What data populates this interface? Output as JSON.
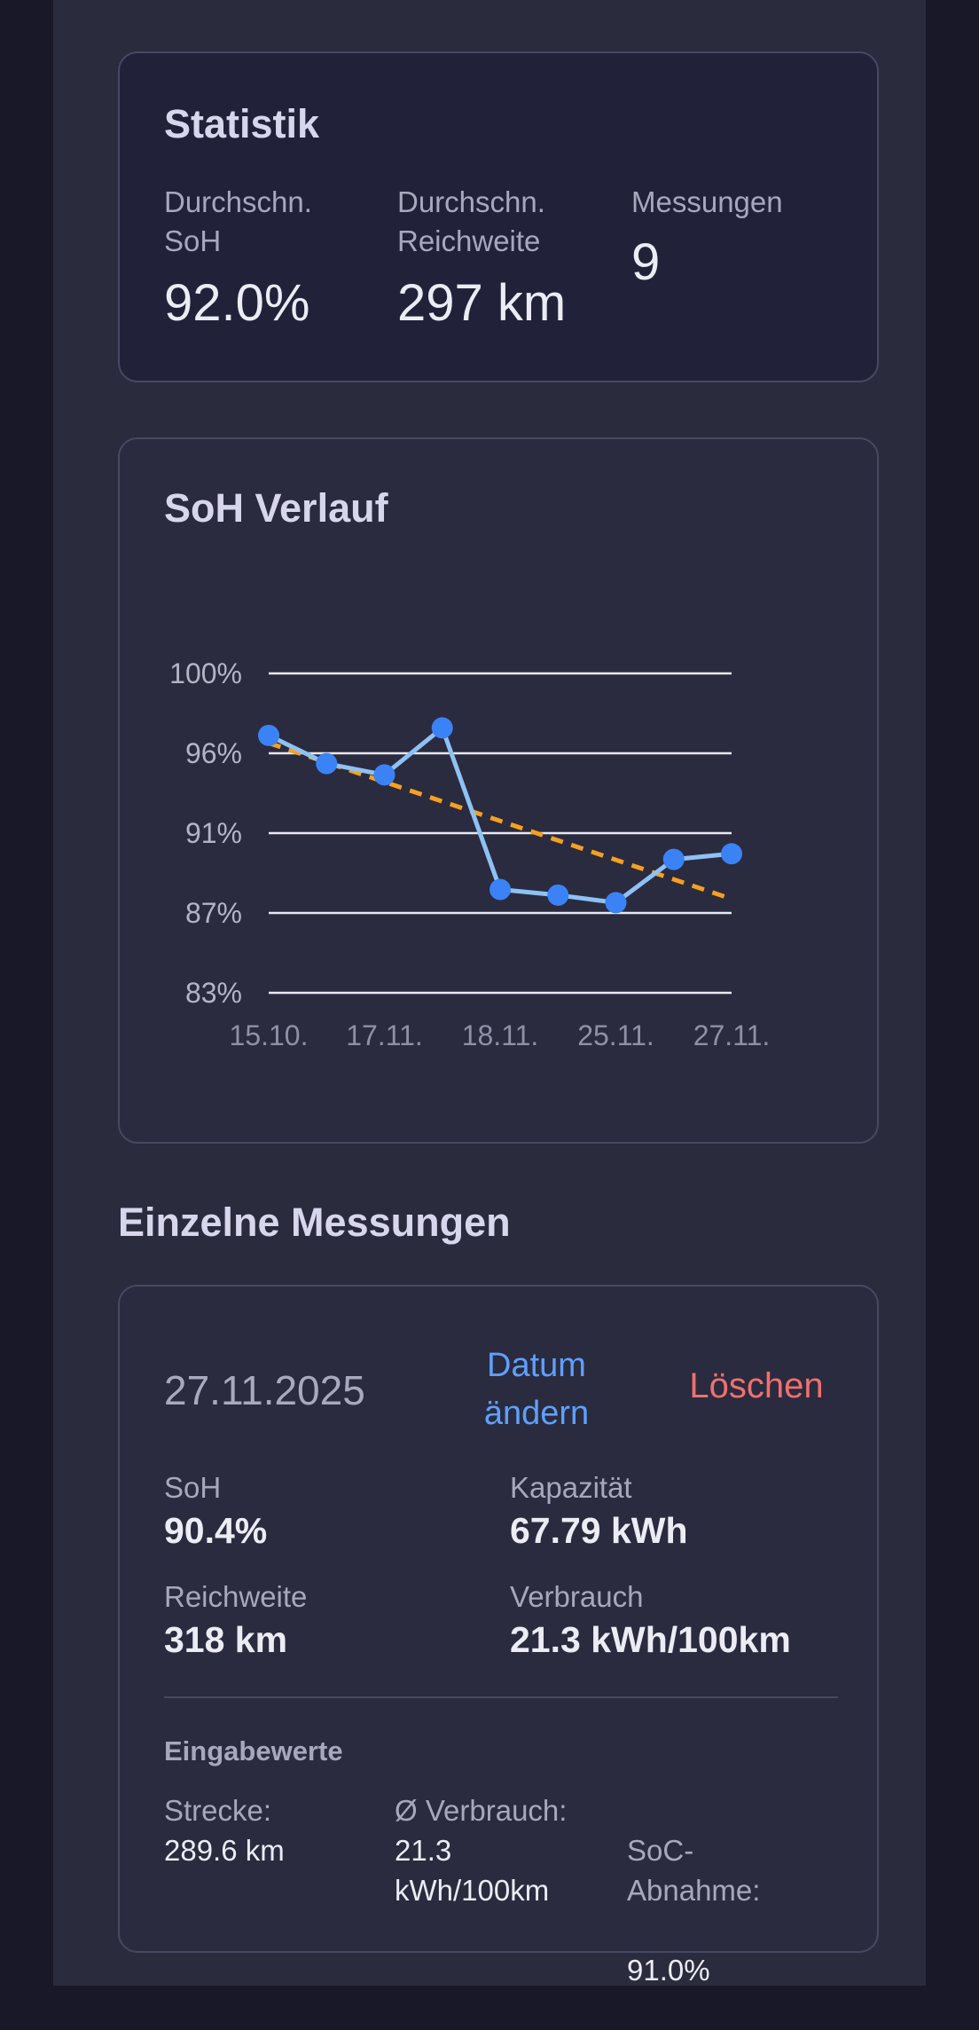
{
  "stats": {
    "title": "Statistik",
    "avg_soh": {
      "label": "Durchschn.\nSoH",
      "value": "92.0%"
    },
    "avg_range": {
      "label": "Durchschn.\nReichweite",
      "value": "297 km"
    },
    "count": {
      "label": "Messungen",
      "value": "9"
    }
  },
  "chart": {
    "title": "SoH Verlauf",
    "chart_data": {
      "type": "line",
      "ylim": [
        83,
        100
      ],
      "y_ticks": [
        100,
        96,
        91,
        87,
        83
      ],
      "y_tick_labels": [
        "100%",
        "96%",
        "91%",
        "87%",
        "83%"
      ],
      "x_tick_labels": [
        "15.10.",
        "17.11.",
        "18.11.",
        "25.11.",
        "27.11."
      ],
      "grid": true,
      "series": [
        {
          "values": [
            96.7,
            95.2,
            94.6,
            97.1,
            88.5,
            88.2,
            87.8,
            90.1,
            90.4
          ],
          "color": "#8ec1f5",
          "marker_color": "#3b82f6"
        }
      ],
      "trend": {
        "start": 96.3,
        "end": 88.0,
        "color": "#f5a020",
        "style": "dashed"
      }
    }
  },
  "measurements_section": {
    "title": "Einzelne Messungen"
  },
  "measurement": {
    "date": "27.11.2025",
    "edit_label": "Datum\nändern",
    "delete_label": "Löschen",
    "soh": {
      "label": "SoH",
      "value": "90.4%"
    },
    "capacity": {
      "label": "Kapazität",
      "value": "67.79 kWh"
    },
    "range": {
      "label": "Reichweite",
      "value": "318 km"
    },
    "consumption": {
      "label": "Verbrauch",
      "value": "21.3 kWh/100km"
    },
    "inputs": {
      "title": "Eingabewerte",
      "distance": {
        "label": "Strecke:",
        "value": " 289.6 km"
      },
      "avg_consumption": {
        "label": "Ø Verbrauch:",
        "value": " 21.3\nkWh/100km"
      },
      "soc_drop": {
        "label": "SoC-\nAbnahme:",
        "value": " 91.0%"
      }
    }
  }
}
